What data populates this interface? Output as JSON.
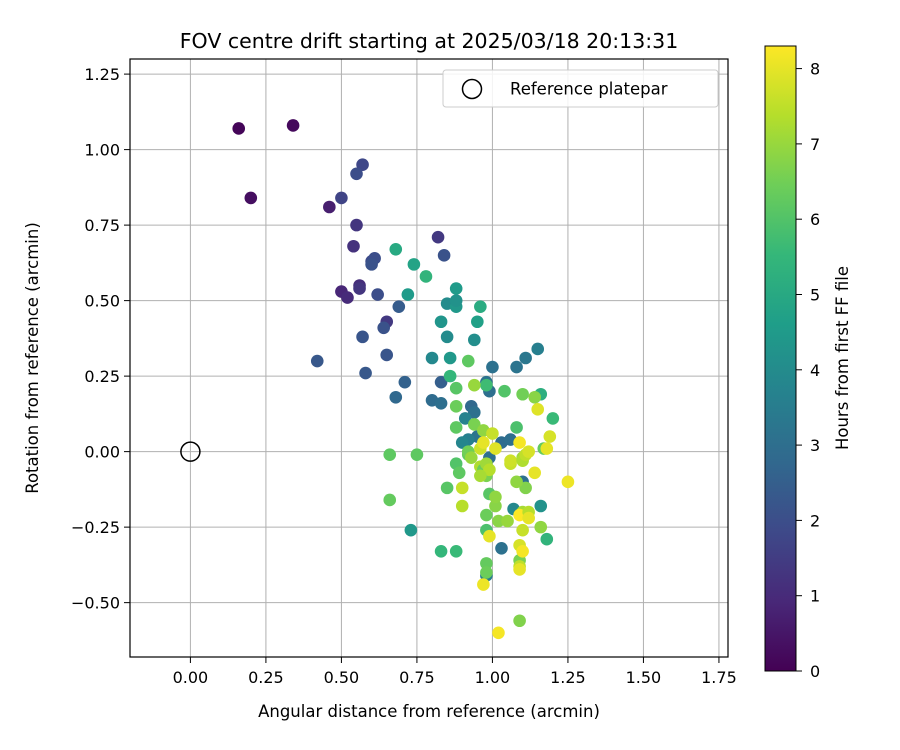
{
  "chart_data": {
    "type": "scatter",
    "title": "FOV centre drift starting at 2025/03/18 20:13:31",
    "xlabel": "Angular distance from reference (arcmin)",
    "ylabel": "Rotation from reference (arcmin)",
    "xlim": [
      -0.2,
      1.78
    ],
    "ylim": [
      -0.68,
      1.3
    ],
    "xticks": [
      0.0,
      0.25,
      0.5,
      0.75,
      1.0,
      1.25,
      1.5,
      1.75
    ],
    "xtick_labels": [
      "0.00",
      "0.25",
      "0.50",
      "0.75",
      "1.00",
      "1.25",
      "1.50",
      "1.75"
    ],
    "yticks": [
      -0.5,
      -0.25,
      0.0,
      0.25,
      0.5,
      0.75,
      1.0,
      1.25
    ],
    "ytick_labels": [
      "−0.50",
      "−0.25",
      "0.00",
      "0.25",
      "0.50",
      "0.75",
      "1.00",
      "1.25"
    ],
    "grid": true,
    "legend": {
      "placement": "top-right",
      "entries": [
        "Reference platepar"
      ]
    },
    "reference_point": {
      "x": 0.0,
      "y": 0.0
    },
    "colorbar": {
      "label": "Hours from first FF file",
      "range": [
        0,
        8.3
      ],
      "ticks": [
        0,
        1,
        2,
        3,
        4,
        5,
        6,
        7,
        8
      ],
      "colormap": "viridis"
    },
    "colors": {
      "grid": "#b0b0b0",
      "viridis": [
        "#440154",
        "#482878",
        "#3e4989",
        "#31688e",
        "#26828e",
        "#1f9e89",
        "#35b779",
        "#6ece58",
        "#b5de2b",
        "#fde725"
      ]
    },
    "points": [
      {
        "x": 0.16,
        "y": 1.07,
        "h": 0.1
      },
      {
        "x": 0.34,
        "y": 1.08,
        "h": 0.2
      },
      {
        "x": 0.2,
        "y": 0.84,
        "h": 0.3
      },
      {
        "x": 0.46,
        "y": 0.81,
        "h": 0.7
      },
      {
        "x": 0.5,
        "y": 0.53,
        "h": 0.9
      },
      {
        "x": 0.52,
        "y": 0.51,
        "h": 1.0
      },
      {
        "x": 0.54,
        "y": 0.68,
        "h": 1.2
      },
      {
        "x": 0.56,
        "y": 0.55,
        "h": 1.1
      },
      {
        "x": 0.56,
        "y": 0.54,
        "h": 1.3
      },
      {
        "x": 0.55,
        "y": 0.75,
        "h": 1.3
      },
      {
        "x": 0.65,
        "y": 0.43,
        "h": 1.4
      },
      {
        "x": 0.5,
        "y": 0.84,
        "h": 1.7
      },
      {
        "x": 0.57,
        "y": 0.95,
        "h": 1.8
      },
      {
        "x": 0.55,
        "y": 0.92,
        "h": 2.0
      },
      {
        "x": 0.6,
        "y": 0.63,
        "h": 1.9
      },
      {
        "x": 0.61,
        "y": 0.64,
        "h": 2.0
      },
      {
        "x": 0.6,
        "y": 0.62,
        "h": 2.1
      },
      {
        "x": 0.62,
        "y": 0.52,
        "h": 2.0
      },
      {
        "x": 0.64,
        "y": 0.41,
        "h": 2.1
      },
      {
        "x": 0.65,
        "y": 0.32,
        "h": 2.2
      },
      {
        "x": 0.57,
        "y": 0.38,
        "h": 2.2
      },
      {
        "x": 0.42,
        "y": 0.3,
        "h": 2.3
      },
      {
        "x": 0.58,
        "y": 0.26,
        "h": 2.3
      },
      {
        "x": 0.69,
        "y": 0.48,
        "h": 2.4
      },
      {
        "x": 0.82,
        "y": 0.71,
        "h": 1.4
      },
      {
        "x": 0.84,
        "y": 0.65,
        "h": 2.1
      },
      {
        "x": 0.71,
        "y": 0.23,
        "h": 2.6
      },
      {
        "x": 0.68,
        "y": 0.18,
        "h": 2.8
      },
      {
        "x": 0.83,
        "y": 0.23,
        "h": 2.5
      },
      {
        "x": 0.8,
        "y": 0.17,
        "h": 2.9
      },
      {
        "x": 0.83,
        "y": 0.16,
        "h": 3.0
      },
      {
        "x": 0.93,
        "y": 0.15,
        "h": 2.8
      },
      {
        "x": 0.99,
        "y": 0.2,
        "h": 3.0
      },
      {
        "x": 0.94,
        "y": 0.13,
        "h": 3.1
      },
      {
        "x": 1.0,
        "y": 0.28,
        "h": 3.1
      },
      {
        "x": 1.08,
        "y": 0.28,
        "h": 3.2
      },
      {
        "x": 1.11,
        "y": 0.31,
        "h": 3.3
      },
      {
        "x": 1.15,
        "y": 0.34,
        "h": 3.6
      },
      {
        "x": 0.98,
        "y": 0.23,
        "h": 3.2
      },
      {
        "x": 0.95,
        "y": 0.05,
        "h": 3.2
      },
      {
        "x": 0.92,
        "y": 0.04,
        "h": 3.6
      },
      {
        "x": 0.9,
        "y": 0.03,
        "h": 3.8
      },
      {
        "x": 0.91,
        "y": 0.11,
        "h": 3.7
      },
      {
        "x": 1.03,
        "y": 0.03,
        "h": 2.9
      },
      {
        "x": 1.06,
        "y": 0.04,
        "h": 3.0
      },
      {
        "x": 0.99,
        "y": -0.02,
        "h": 3.0
      },
      {
        "x": 1.03,
        "y": -0.32,
        "h": 3.1
      },
      {
        "x": 1.1,
        "y": -0.1,
        "h": 3.1
      },
      {
        "x": 0.98,
        "y": -0.41,
        "h": 3.6
      },
      {
        "x": 1.16,
        "y": -0.18,
        "h": 4.2
      },
      {
        "x": 1.18,
        "y": -0.29,
        "h": 5.4
      },
      {
        "x": 1.07,
        "y": -0.19,
        "h": 3.9
      },
      {
        "x": 0.8,
        "y": 0.31,
        "h": 3.9
      },
      {
        "x": 0.86,
        "y": 0.31,
        "h": 4.4
      },
      {
        "x": 0.85,
        "y": 0.38,
        "h": 4.0
      },
      {
        "x": 0.94,
        "y": 0.37,
        "h": 4.1
      },
      {
        "x": 0.83,
        "y": 0.43,
        "h": 4.3
      },
      {
        "x": 0.85,
        "y": 0.49,
        "h": 4.0
      },
      {
        "x": 0.88,
        "y": 0.48,
        "h": 4.4
      },
      {
        "x": 0.88,
        "y": 0.5,
        "h": 4.2
      },
      {
        "x": 0.88,
        "y": 0.54,
        "h": 4.5
      },
      {
        "x": 0.95,
        "y": 0.43,
        "h": 4.7
      },
      {
        "x": 0.96,
        "y": 0.48,
        "h": 5.1
      },
      {
        "x": 0.72,
        "y": 0.52,
        "h": 4.5
      },
      {
        "x": 0.74,
        "y": 0.62,
        "h": 4.8
      },
      {
        "x": 0.68,
        "y": 0.67,
        "h": 5.0
      },
      {
        "x": 0.78,
        "y": 0.58,
        "h": 5.4
      },
      {
        "x": 0.92,
        "y": 0.3,
        "h": 6.2
      },
      {
        "x": 0.86,
        "y": 0.25,
        "h": 5.5
      },
      {
        "x": 0.88,
        "y": 0.21,
        "h": 6.1
      },
      {
        "x": 0.98,
        "y": 0.22,
        "h": 5.7
      },
      {
        "x": 1.04,
        "y": 0.2,
        "h": 6.0
      },
      {
        "x": 1.1,
        "y": 0.19,
        "h": 6.5
      },
      {
        "x": 1.16,
        "y": 0.19,
        "h": 5.2
      },
      {
        "x": 1.2,
        "y": 0.11,
        "h": 5.6
      },
      {
        "x": 1.14,
        "y": 0.18,
        "h": 6.8
      },
      {
        "x": 1.15,
        "y": 0.14,
        "h": 7.9
      },
      {
        "x": 0.94,
        "y": 0.22,
        "h": 7.0
      },
      {
        "x": 0.88,
        "y": 0.15,
        "h": 6.4
      },
      {
        "x": 0.88,
        "y": 0.08,
        "h": 6.2
      },
      {
        "x": 0.94,
        "y": 0.09,
        "h": 6.6
      },
      {
        "x": 0.97,
        "y": 0.07,
        "h": 6.9
      },
      {
        "x": 1.0,
        "y": 0.06,
        "h": 7.6
      },
      {
        "x": 1.08,
        "y": 0.08,
        "h": 5.9
      },
      {
        "x": 1.17,
        "y": 0.01,
        "h": 6.3
      },
      {
        "x": 1.19,
        "y": 0.05,
        "h": 7.8
      },
      {
        "x": 1.18,
        "y": 0.01,
        "h": 8.0
      },
      {
        "x": 0.92,
        "y": -0.01,
        "h": 6.3
      },
      {
        "x": 0.92,
        "y": 0.0,
        "h": 6.5
      },
      {
        "x": 0.93,
        "y": -0.02,
        "h": 7.0
      },
      {
        "x": 0.96,
        "y": -0.05,
        "h": 7.3
      },
      {
        "x": 0.97,
        "y": -0.06,
        "h": 6.4
      },
      {
        "x": 0.98,
        "y": -0.08,
        "h": 6.6
      },
      {
        "x": 0.98,
        "y": -0.04,
        "h": 7.1
      },
      {
        "x": 0.88,
        "y": -0.04,
        "h": 6.0
      },
      {
        "x": 0.89,
        "y": -0.07,
        "h": 6.2
      },
      {
        "x": 0.85,
        "y": -0.12,
        "h": 6.1
      },
      {
        "x": 0.66,
        "y": -0.01,
        "h": 6.2
      },
      {
        "x": 0.75,
        "y": -0.01,
        "h": 6.2
      },
      {
        "x": 0.66,
        "y": -0.16,
        "h": 6.3
      },
      {
        "x": 0.83,
        "y": -0.33,
        "h": 5.5
      },
      {
        "x": 0.88,
        "y": -0.33,
        "h": 5.6
      },
      {
        "x": 0.73,
        "y": -0.26,
        "h": 4.4
      },
      {
        "x": 0.9,
        "y": -0.12,
        "h": 7.6
      },
      {
        "x": 0.9,
        "y": -0.18,
        "h": 7.4
      },
      {
        "x": 0.99,
        "y": -0.14,
        "h": 6.1
      },
      {
        "x": 1.01,
        "y": -0.18,
        "h": 6.8
      },
      {
        "x": 1.01,
        "y": -0.15,
        "h": 6.9
      },
      {
        "x": 0.98,
        "y": -0.21,
        "h": 6.4
      },
      {
        "x": 1.02,
        "y": -0.23,
        "h": 6.8
      },
      {
        "x": 0.98,
        "y": -0.26,
        "h": 5.9
      },
      {
        "x": 0.99,
        "y": -0.28,
        "h": 8.0
      },
      {
        "x": 0.98,
        "y": -0.37,
        "h": 6.3
      },
      {
        "x": 0.97,
        "y": -0.44,
        "h": 8.1
      },
      {
        "x": 0.98,
        "y": -0.4,
        "h": 6.4
      },
      {
        "x": 1.02,
        "y": -0.6,
        "h": 8.2
      },
      {
        "x": 1.09,
        "y": -0.56,
        "h": 6.7
      },
      {
        "x": 1.05,
        "y": -0.23,
        "h": 7.0
      },
      {
        "x": 1.1,
        "y": -0.2,
        "h": 7.2
      },
      {
        "x": 1.09,
        "y": -0.21,
        "h": 8.3
      },
      {
        "x": 1.12,
        "y": -0.2,
        "h": 7.4
      },
      {
        "x": 1.11,
        "y": -0.12,
        "h": 6.7
      },
      {
        "x": 1.08,
        "y": -0.1,
        "h": 6.9
      },
      {
        "x": 1.1,
        "y": -0.26,
        "h": 7.6
      },
      {
        "x": 1.12,
        "y": -0.22,
        "h": 8.0
      },
      {
        "x": 1.16,
        "y": -0.25,
        "h": 6.9
      },
      {
        "x": 1.09,
        "y": -0.31,
        "h": 7.8
      },
      {
        "x": 1.09,
        "y": -0.36,
        "h": 6.6
      },
      {
        "x": 1.09,
        "y": -0.38,
        "h": 7.5
      },
      {
        "x": 1.09,
        "y": -0.39,
        "h": 8.0
      },
      {
        "x": 1.1,
        "y": -0.33,
        "h": 8.2
      },
      {
        "x": 1.06,
        "y": -0.04,
        "h": 7.6
      },
      {
        "x": 1.06,
        "y": -0.03,
        "h": 7.7
      },
      {
        "x": 1.1,
        "y": -0.02,
        "h": 7.1
      },
      {
        "x": 1.1,
        "y": -0.03,
        "h": 7.3
      },
      {
        "x": 1.11,
        "y": -0.01,
        "h": 7.5
      },
      {
        "x": 1.12,
        "y": 0.0,
        "h": 7.8
      },
      {
        "x": 1.09,
        "y": 0.03,
        "h": 8.2
      },
      {
        "x": 1.14,
        "y": -0.07,
        "h": 8.0
      },
      {
        "x": 1.25,
        "y": -0.1,
        "h": 8.1
      },
      {
        "x": 1.01,
        "y": 0.01,
        "h": 7.9
      },
      {
        "x": 0.96,
        "y": 0.01,
        "h": 7.7
      },
      {
        "x": 0.97,
        "y": 0.03,
        "h": 8.0
      },
      {
        "x": 0.99,
        "y": -0.06,
        "h": 7.4
      },
      {
        "x": 0.96,
        "y": -0.08,
        "h": 7.2
      }
    ]
  }
}
